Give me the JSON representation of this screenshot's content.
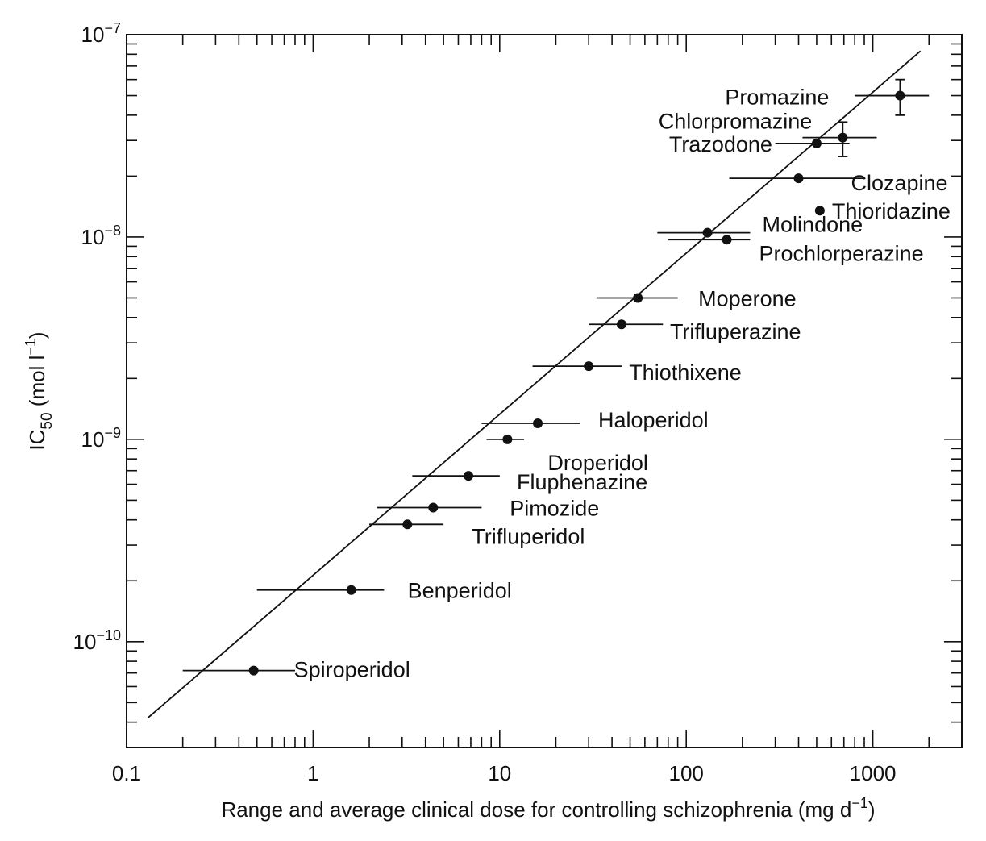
{
  "chart_data": {
    "type": "scatter",
    "title": "",
    "xlabel": "Range and average clinical dose for controlling schizophrenia (mg d",
    "xlabel_superscript": "−1",
    "xlabel_end": ")",
    "ylabel_main": "IC",
    "ylabel_sub": "50",
    "ylabel_unit": " (mol l",
    "ylabel_superscript": "−1",
    "ylabel_end": ")",
    "x_scale": "log",
    "y_scale": "log",
    "xlim": [
      0.1,
      3000
    ],
    "ylim": [
      3e-11,
      1e-07
    ],
    "x_ticks": [
      {
        "value": 0.1,
        "label": "0.1"
      },
      {
        "value": 1,
        "label": "1"
      },
      {
        "value": 10,
        "label": "10"
      },
      {
        "value": 100,
        "label": "100"
      },
      {
        "value": 1000,
        "label": "1000"
      }
    ],
    "y_ticks": [
      {
        "value": 1e-10,
        "base": "10",
        "exp": "−10"
      },
      {
        "value": 1e-09,
        "base": "10",
        "exp": "−9"
      },
      {
        "value": 1e-08,
        "base": "10",
        "exp": "−8"
      },
      {
        "value": 1e-07,
        "base": "10",
        "exp": "−7"
      }
    ],
    "grid": false,
    "legend": "none",
    "trend_line": {
      "x": [
        0.13,
        1800
      ],
      "y": [
        4.2e-11,
        8.3e-08
      ]
    },
    "points": [
      {
        "name": "Spiroperidol",
        "x": 0.48,
        "y": 7.2e-11,
        "xmin": 0.2,
        "xmax": 0.8
      },
      {
        "name": "Benperidol",
        "x": 1.6,
        "y": 1.8e-10,
        "xmin": 0.5,
        "xmax": 2.4
      },
      {
        "name": "Trifluperidol",
        "x": 3.2,
        "y": 3.8e-10,
        "xmin": 2.0,
        "xmax": 5.0
      },
      {
        "name": "Pimozide",
        "x": 4.4,
        "y": 4.6e-10,
        "xmin": 2.2,
        "xmax": 8.0
      },
      {
        "name": "Fluphenazine",
        "x": 6.8,
        "y": 6.6e-10,
        "xmin": 3.4,
        "xmax": 10.0
      },
      {
        "name": "Droperidol",
        "x": 11,
        "y": 1e-09,
        "xmin": 8.5,
        "xmax": 13.5
      },
      {
        "name": "Haloperidol",
        "x": 16,
        "y": 1.2e-09,
        "xmin": 8.0,
        "xmax": 27
      },
      {
        "name": "Thiothixene",
        "x": 30,
        "y": 2.3e-09,
        "xmin": 15,
        "xmax": 45
      },
      {
        "name": "Trifluperazine",
        "x": 45,
        "y": 3.7e-09,
        "xmin": 30,
        "xmax": 75
      },
      {
        "name": "Moperone",
        "x": 55,
        "y": 5e-09,
        "xmin": 33,
        "xmax": 90
      },
      {
        "name": "Molindone",
        "x": 130,
        "y": 1.05e-08,
        "xmin": 70,
        "xmax": 220
      },
      {
        "name": "Prochlorperazine",
        "x": 165,
        "y": 9.7e-09,
        "xmin": 80,
        "xmax": 220
      },
      {
        "name": "Clozapine",
        "x": 400,
        "y": 1.95e-08,
        "xmin": 170,
        "xmax": 900
      },
      {
        "name": "Thioridazine",
        "x": 520,
        "y": 1.35e-08
      },
      {
        "name": "Trazodone",
        "x": 500,
        "y": 2.9e-08,
        "xmin": 300,
        "xmax": 750
      },
      {
        "name": "Chlorpromazine",
        "x": 690,
        "y": 3.1e-08,
        "xmin": 420,
        "xmax": 1050,
        "ymin": 2.5e-08,
        "ymax": 3.7e-08
      },
      {
        "name": "Promazine",
        "x": 1400,
        "y": 5e-08,
        "xmin": 800,
        "xmax": 2000,
        "ymin": 4e-08,
        "ymax": 6e-08
      }
    ]
  }
}
